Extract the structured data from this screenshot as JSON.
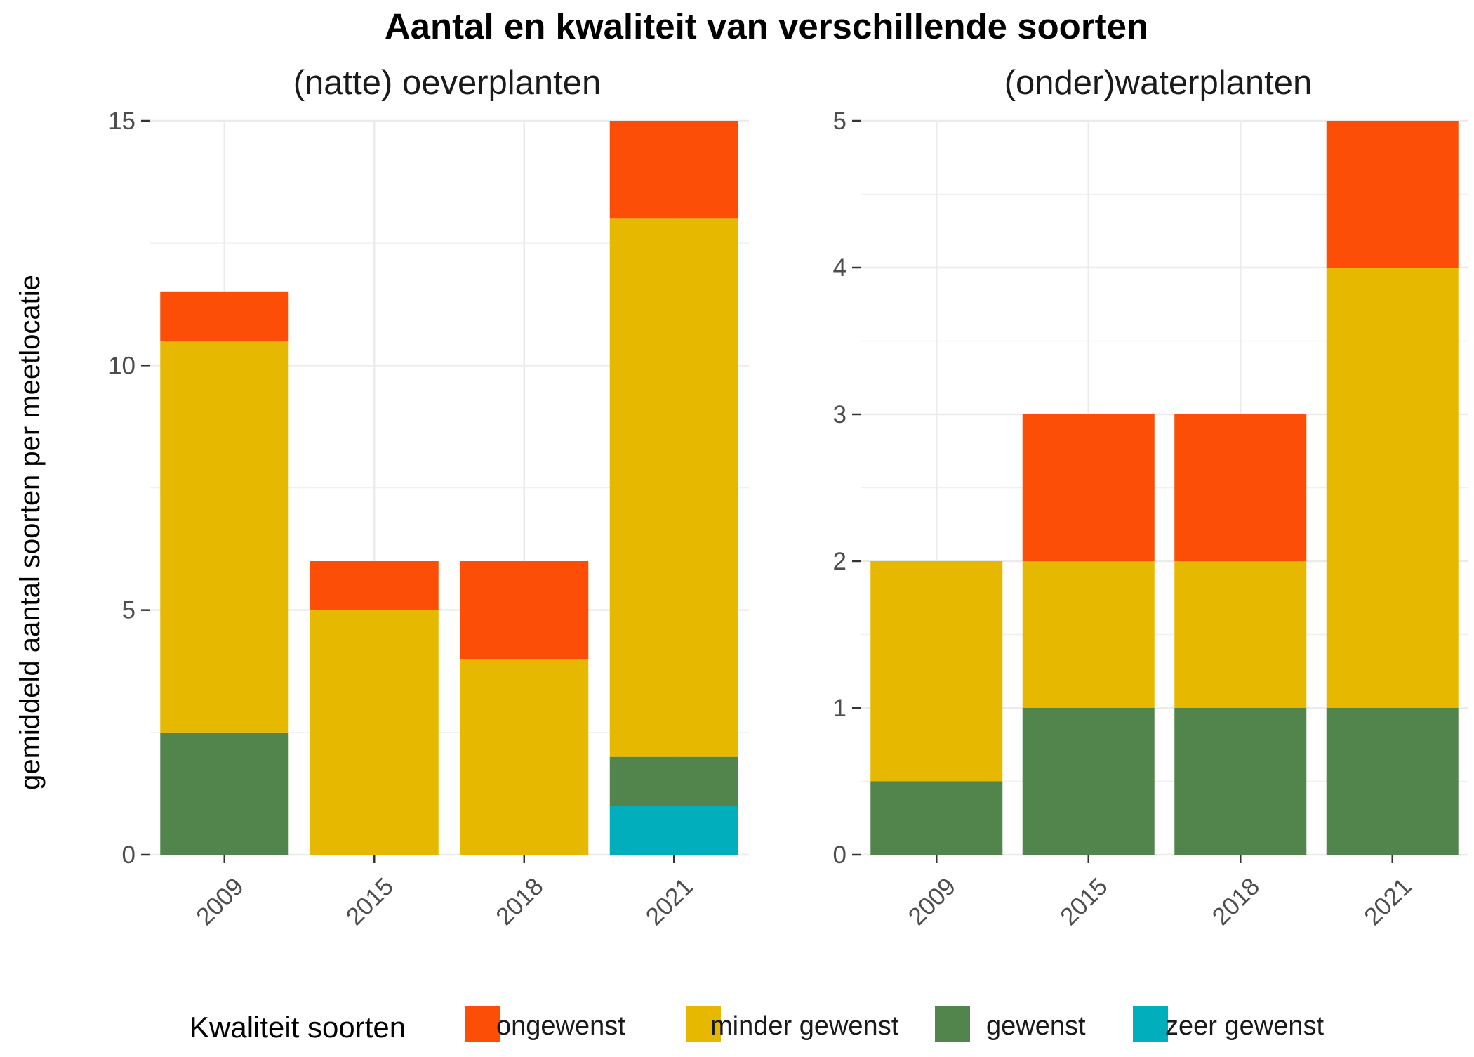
{
  "chart_data": {
    "type": "bar",
    "stacked": true,
    "title": "Aantal en kwaliteit van verschillende soorten",
    "ylabel": "gemiddeld aantal soorten per meetlocatie",
    "xlabel": "",
    "legend": {
      "title": "Kwaliteit soorten",
      "position": "bottom",
      "entries": [
        {
          "name": "ongewenst",
          "color": "#FC4E07"
        },
        {
          "name": "minder gewenst",
          "color": "#E7B800"
        },
        {
          "name": "gewenst",
          "color": "#52854C"
        },
        {
          "name": "zeer gewenst",
          "color": "#00AFBB"
        }
      ]
    },
    "grid": true,
    "panels": [
      {
        "title": "(natte) oeverplanten",
        "categories": [
          "2009",
          "2015",
          "2018",
          "2021"
        ],
        "ylim": [
          0,
          15
        ],
        "yticks": [
          "0",
          "5",
          "10",
          "15"
        ],
        "series": [
          {
            "name": "zeer gewenst",
            "color": "#00AFBB",
            "values": [
              0,
              0,
              0,
              1
            ]
          },
          {
            "name": "gewenst",
            "color": "#52854C",
            "values": [
              2.5,
              0,
              0,
              1
            ]
          },
          {
            "name": "minder gewenst",
            "color": "#E7B800",
            "values": [
              8,
              5,
              4,
              11
            ]
          },
          {
            "name": "ongewenst",
            "color": "#FC4E07",
            "values": [
              1,
              1,
              2,
              2
            ]
          }
        ]
      },
      {
        "title": "(onder)waterplanten",
        "categories": [
          "2009",
          "2015",
          "2018",
          "2021"
        ],
        "ylim": [
          0,
          5
        ],
        "yticks": [
          "0",
          "1",
          "2",
          "3",
          "4",
          "5"
        ],
        "series": [
          {
            "name": "zeer gewenst",
            "color": "#00AFBB",
            "values": [
              0,
              0,
              0,
              0
            ]
          },
          {
            "name": "gewenst",
            "color": "#52854C",
            "values": [
              0.5,
              1,
              1,
              1
            ]
          },
          {
            "name": "minder gewenst",
            "color": "#E7B800",
            "values": [
              1.5,
              1,
              1,
              3
            ]
          },
          {
            "name": "ongewenst",
            "color": "#FC4E07",
            "values": [
              0,
              1,
              1,
              1
            ]
          }
        ]
      }
    ]
  }
}
